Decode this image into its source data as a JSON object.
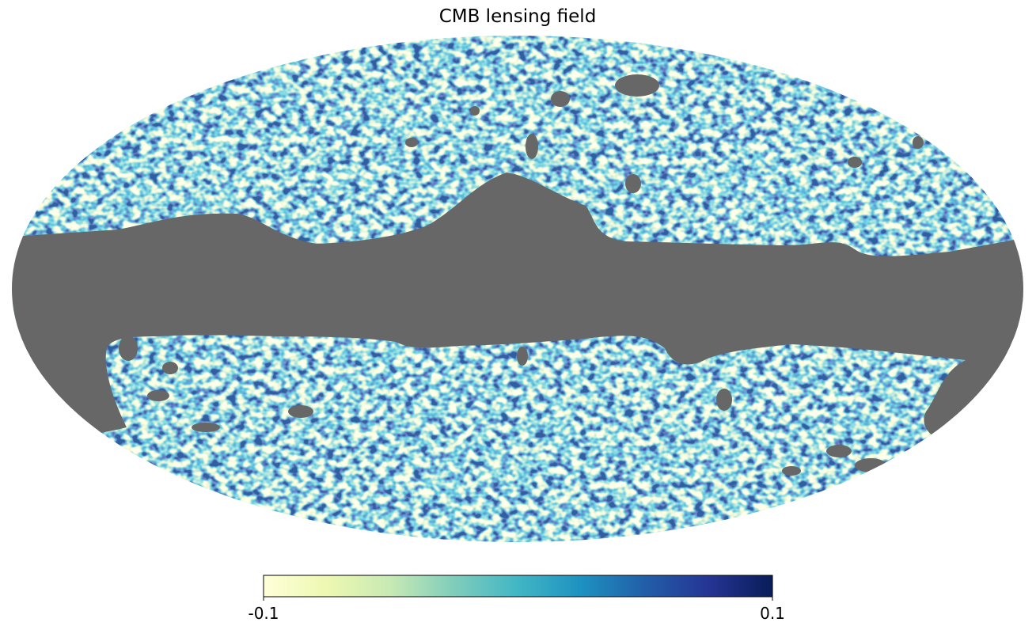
{
  "chart_data": {
    "type": "map",
    "projection": "mollweide",
    "title": "CMB lensing field",
    "colormap": "YlGnBu",
    "colormap_colors": [
      "#ffffd9",
      "#edf8b1",
      "#c7e9b4",
      "#7fcdbb",
      "#41b6c4",
      "#1d91c0",
      "#225ea8",
      "#253494",
      "#081d58"
    ],
    "mask_color": "#676767",
    "clim": [
      -0.1,
      0.1
    ],
    "cticks": [
      -0.1,
      0.1
    ]
  }
}
